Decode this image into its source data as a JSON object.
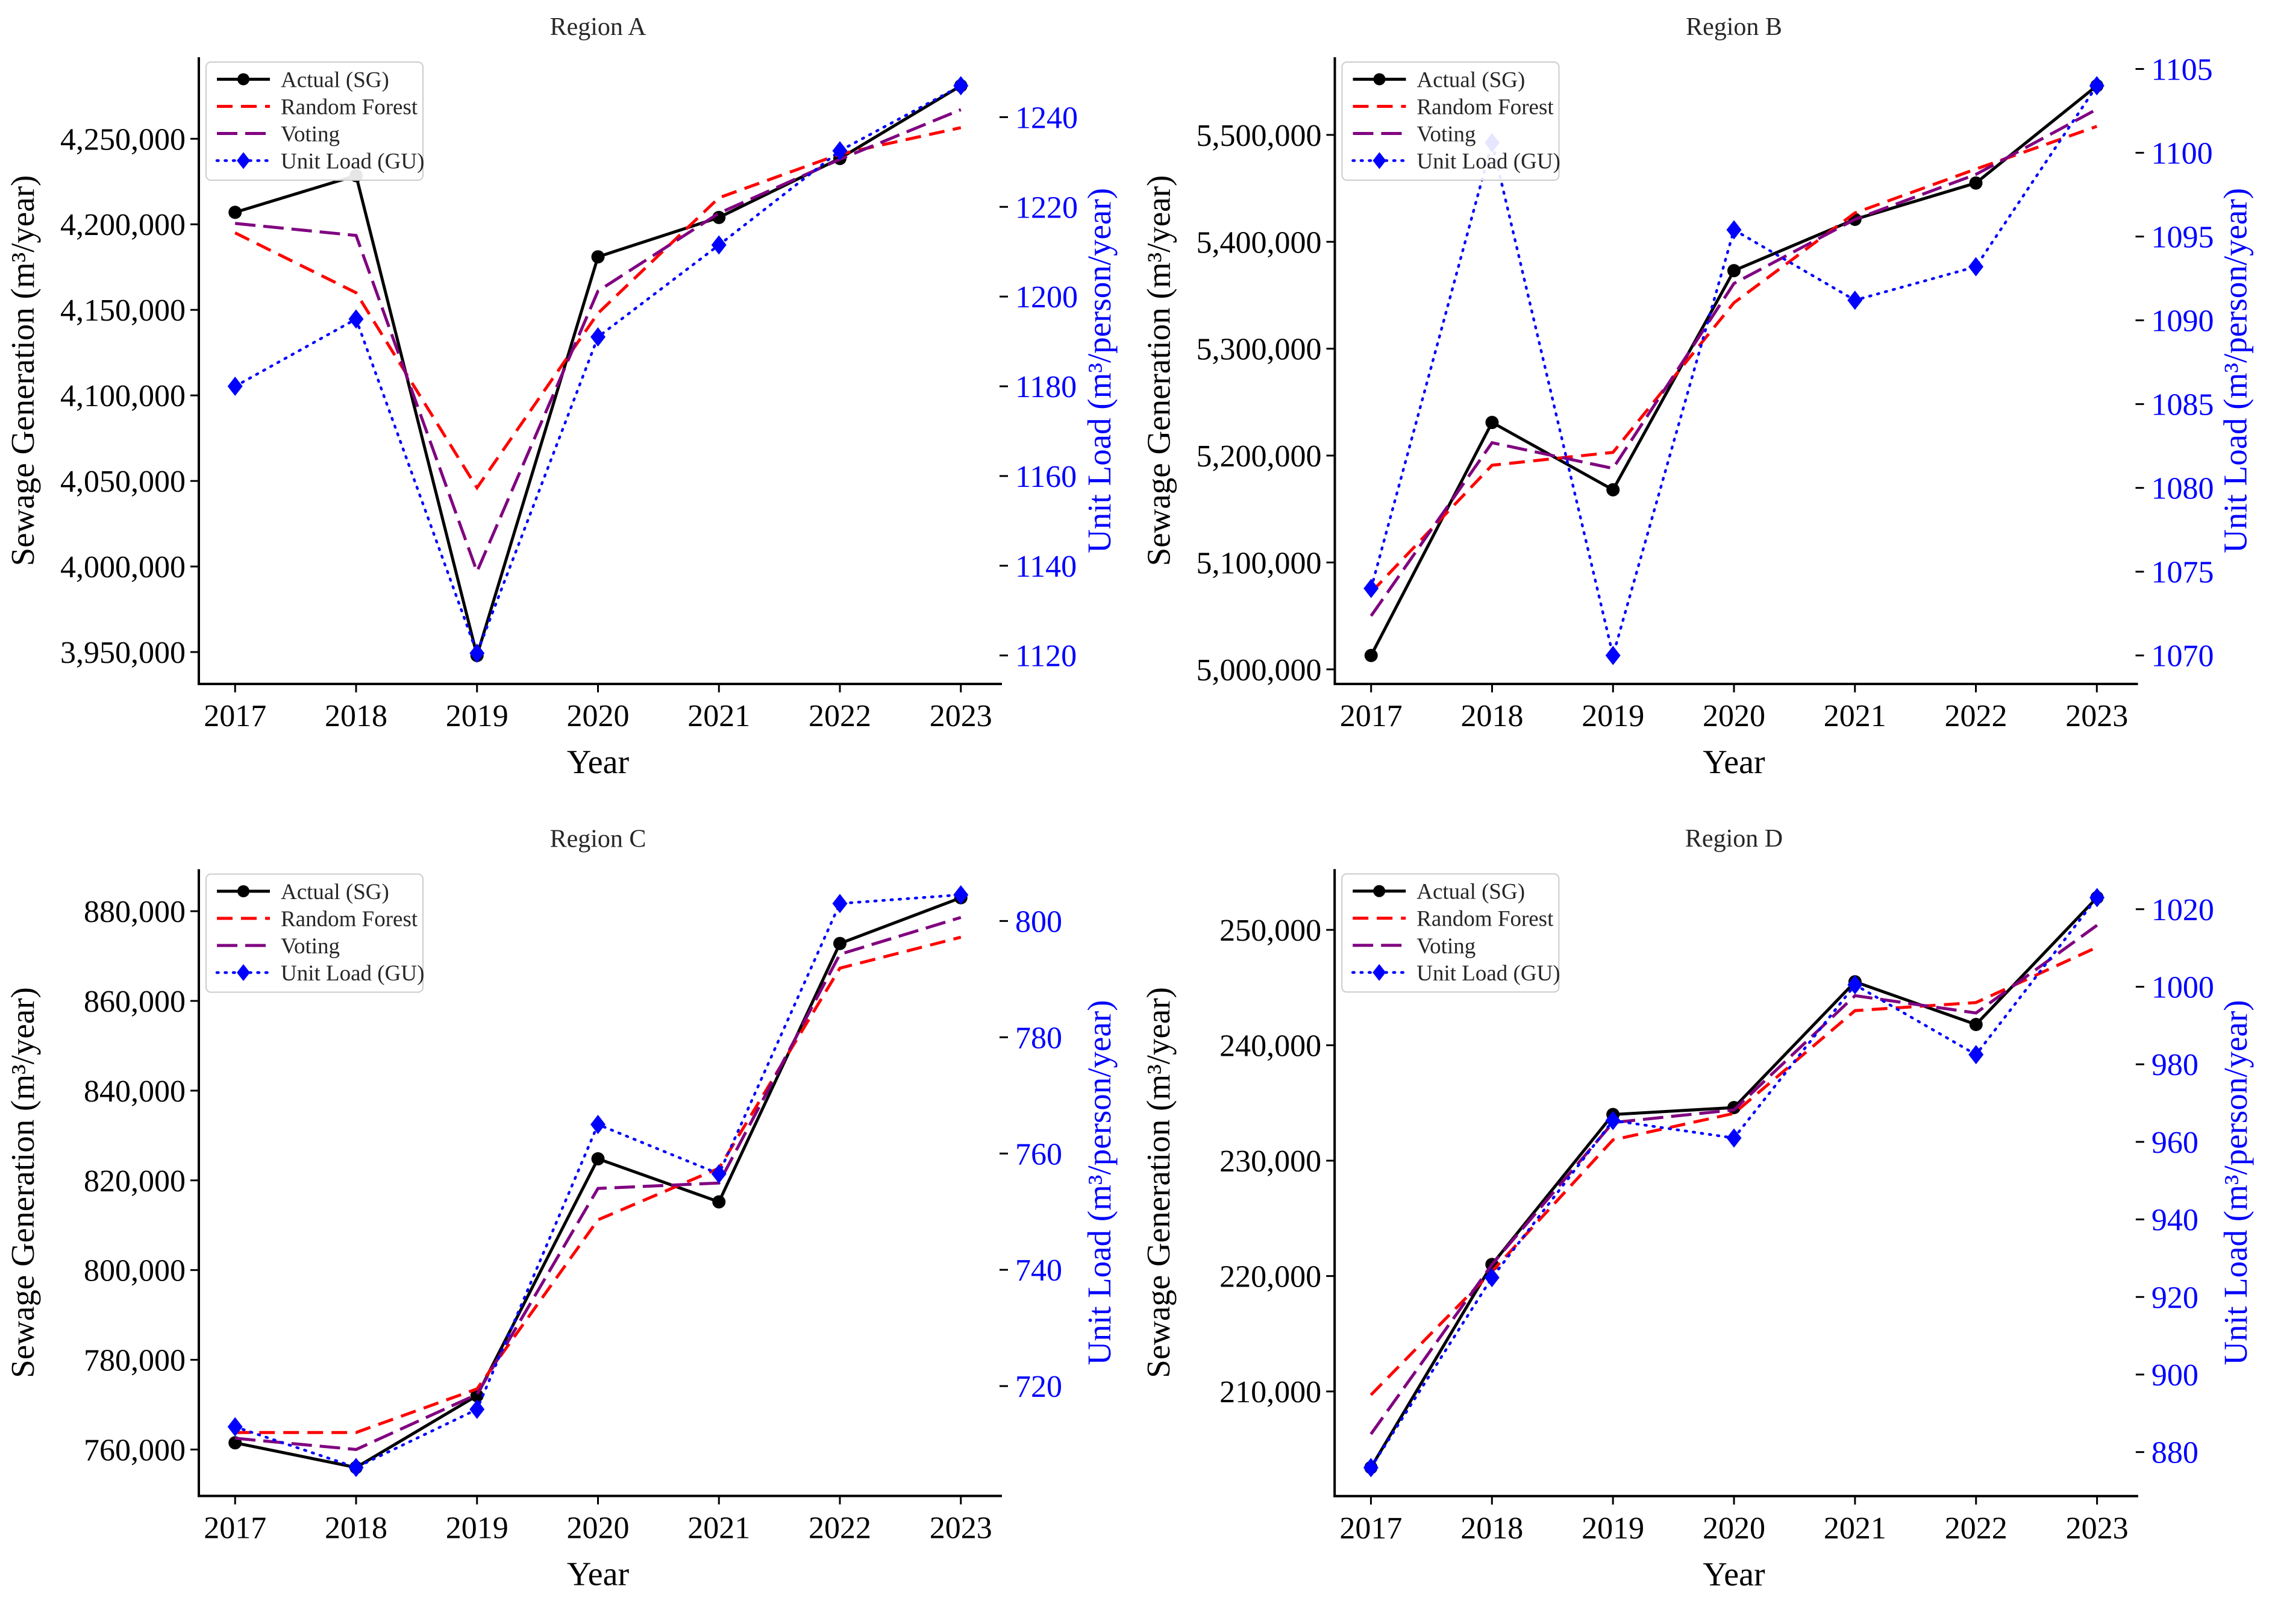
{
  "page": {
    "background": "#ffffff",
    "layout": "2x2-subplot-grid"
  },
  "style_tokens": {
    "actual_color": "#000000",
    "random_forest_color": "#ff0000",
    "voting_color": "#800080",
    "unit_load_color": "#0000ff",
    "title_color": "#262626",
    "tick_color": "#000000",
    "legend_text_color": "#262626",
    "legend_border_color": "#cccccc",
    "legend_bg_color": "#ffffff"
  },
  "chart_data": [
    {
      "id": "region-a",
      "type": "line",
      "title": "Region A",
      "xlabel": "Year",
      "ylabel_left": "Sewage Generation (m³/year)",
      "ylabel_right": "Unit Load (m³/person/year)",
      "legend_position": "upper left",
      "grid": false,
      "x": [
        2017,
        2018,
        2019,
        2020,
        2021,
        2022,
        2023
      ],
      "xlim": [
        2016.7,
        2023.3
      ],
      "ylim_left": [
        3931350,
        4297650
      ],
      "yticks_left": [
        3950000,
        4000000,
        4050000,
        4100000,
        4150000,
        4200000,
        4250000
      ],
      "ylim_right": [
        1113.65,
        1253.35
      ],
      "yticks_right": [
        1120,
        1140,
        1160,
        1180,
        1200,
        1220,
        1240
      ],
      "series": [
        {
          "name": "Actual (SG)",
          "axis": "left",
          "color": "#000000",
          "style": "solid",
          "marker": "circle",
          "values": [
            4207000,
            4228500,
            3948000,
            4181000,
            4204000,
            4238500,
            4281000
          ]
        },
        {
          "name": "Random Forest",
          "axis": "left",
          "color": "#ff0000",
          "style": "dashed",
          "marker": "none",
          "values": [
            4195000,
            4160000,
            4046000,
            4148000,
            4215500,
            4241000,
            4256500
          ]
        },
        {
          "name": "Voting",
          "axis": "left",
          "color": "#800080",
          "style": "long-dash",
          "marker": "none",
          "values": [
            4200500,
            4193500,
            3997000,
            4161000,
            4206500,
            4238000,
            4267000
          ]
        },
        {
          "name": "Unit Load (GU)",
          "axis": "right",
          "color": "#0000ff",
          "style": "dotted",
          "marker": "diamond",
          "values": [
            1180,
            1195,
            1120.5,
            1191,
            1211.5,
            1232.5,
            1247
          ]
        }
      ]
    },
    {
      "id": "region-b",
      "type": "line",
      "title": "Region B",
      "xlabel": "Year",
      "ylabel_left": "Sewage Generation (m³/year)",
      "ylabel_right": "Unit Load (m³/person/year)",
      "legend_position": "upper left",
      "grid": false,
      "x": [
        2017,
        2018,
        2019,
        2020,
        2021,
        2022,
        2023
      ],
      "xlim": [
        2016.7,
        2023.3
      ],
      "ylim_left": [
        4986350,
        5572650
      ],
      "yticks_left": [
        5000000,
        5100000,
        5200000,
        5300000,
        5400000,
        5500000
      ],
      "ylim_right": [
        1068.3,
        1105.7
      ],
      "yticks_right": [
        1070,
        1075,
        1080,
        1085,
        1090,
        1095,
        1100,
        1105
      ],
      "series": [
        {
          "name": "Actual (SG)",
          "axis": "left",
          "color": "#000000",
          "style": "solid",
          "marker": "circle",
          "values": [
            5013000,
            5231000,
            5168000,
            5373000,
            5421000,
            5455000,
            5546000
          ]
        },
        {
          "name": "Random Forest",
          "axis": "left",
          "color": "#ff0000",
          "style": "dashed",
          "marker": "none",
          "values": [
            5072000,
            5191000,
            5203000,
            5343000,
            5427000,
            5468000,
            5508000
          ]
        },
        {
          "name": "Voting",
          "axis": "left",
          "color": "#800080",
          "style": "long-dash",
          "marker": "none",
          "values": [
            5050000,
            5212000,
            5188000,
            5361000,
            5421000,
            5463000,
            5524000
          ]
        },
        {
          "name": "Unit Load (GU)",
          "axis": "right",
          "color": "#0000ff",
          "style": "dotted",
          "marker": "diamond",
          "values": [
            1074,
            1100.6,
            1070,
            1095.4,
            1091.2,
            1093.2,
            1104
          ]
        }
      ]
    },
    {
      "id": "region-c",
      "type": "line",
      "title": "Region C",
      "xlabel": "Year",
      "ylabel_left": "Sewage Generation (m³/year)",
      "ylabel_right": "Unit Load (m³/person/year)",
      "legend_position": "upper left",
      "grid": false,
      "x": [
        2017,
        2018,
        2019,
        2020,
        2021,
        2022,
        2023
      ],
      "xlim": [
        2016.7,
        2023.3
      ],
      "ylim_left": [
        749650,
        889350
      ],
      "yticks_left": [
        760000,
        780000,
        800000,
        820000,
        840000,
        860000,
        880000
      ],
      "ylim_right": [
        701.1,
        808.9
      ],
      "yticks_right": [
        720,
        740,
        760,
        780,
        800
      ],
      "series": [
        {
          "name": "Actual (SG)",
          "axis": "left",
          "color": "#000000",
          "style": "solid",
          "marker": "circle",
          "values": [
            761500,
            756000,
            772000,
            824800,
            815200,
            872800,
            883000
          ]
        },
        {
          "name": "Random Forest",
          "axis": "left",
          "color": "#ff0000",
          "style": "dashed",
          "marker": "none",
          "values": [
            763800,
            763800,
            773500,
            811200,
            822700,
            867300,
            874200
          ]
        },
        {
          "name": "Voting",
          "axis": "left",
          "color": "#800080",
          "style": "long-dash",
          "marker": "none",
          "values": [
            762500,
            760000,
            772300,
            818200,
            819400,
            870400,
            878600
          ]
        },
        {
          "name": "Unit Load (GU)",
          "axis": "right",
          "color": "#0000ff",
          "style": "dotted",
          "marker": "diamond",
          "values": [
            713,
            706,
            716,
            765,
            756.5,
            803,
            804.5
          ]
        }
      ]
    },
    {
      "id": "region-d",
      "type": "line",
      "title": "Region D",
      "xlabel": "Year",
      "ylabel_left": "Sewage Generation (m³/year)",
      "ylabel_right": "Unit Load (m³/person/year)",
      "legend_position": "upper left",
      "grid": false,
      "x": [
        2017,
        2018,
        2019,
        2020,
        2021,
        2022,
        2023
      ],
      "xlim": [
        2016.7,
        2023.3
      ],
      "ylim_left": [
        200930,
        255270
      ],
      "yticks_left": [
        210000,
        220000,
        230000,
        240000,
        250000
      ],
      "ylim_right": [
        868.65,
        1030.35
      ],
      "yticks_right": [
        880,
        900,
        920,
        940,
        960,
        980,
        1000,
        1020
      ],
      "series": [
        {
          "name": "Actual (SG)",
          "axis": "left",
          "color": "#000000",
          "style": "solid",
          "marker": "circle",
          "values": [
            203400,
            221000,
            234000,
            234600,
            245500,
            241800,
            252800
          ]
        },
        {
          "name": "Random Forest",
          "axis": "left",
          "color": "#ff0000",
          "style": "dashed",
          "marker": "none",
          "values": [
            209700,
            220400,
            231800,
            234100,
            243000,
            243700,
            248500
          ]
        },
        {
          "name": "Voting",
          "axis": "left",
          "color": "#800080",
          "style": "long-dash",
          "marker": "none",
          "values": [
            206300,
            221000,
            233300,
            234400,
            244300,
            242800,
            250400
          ]
        },
        {
          "name": "Unit Load (GU)",
          "axis": "right",
          "color": "#0000ff",
          "style": "dotted",
          "marker": "diamond",
          "values": [
            876,
            925,
            965.5,
            961,
            1000.5,
            982.5,
            1023
          ]
        }
      ]
    }
  ]
}
